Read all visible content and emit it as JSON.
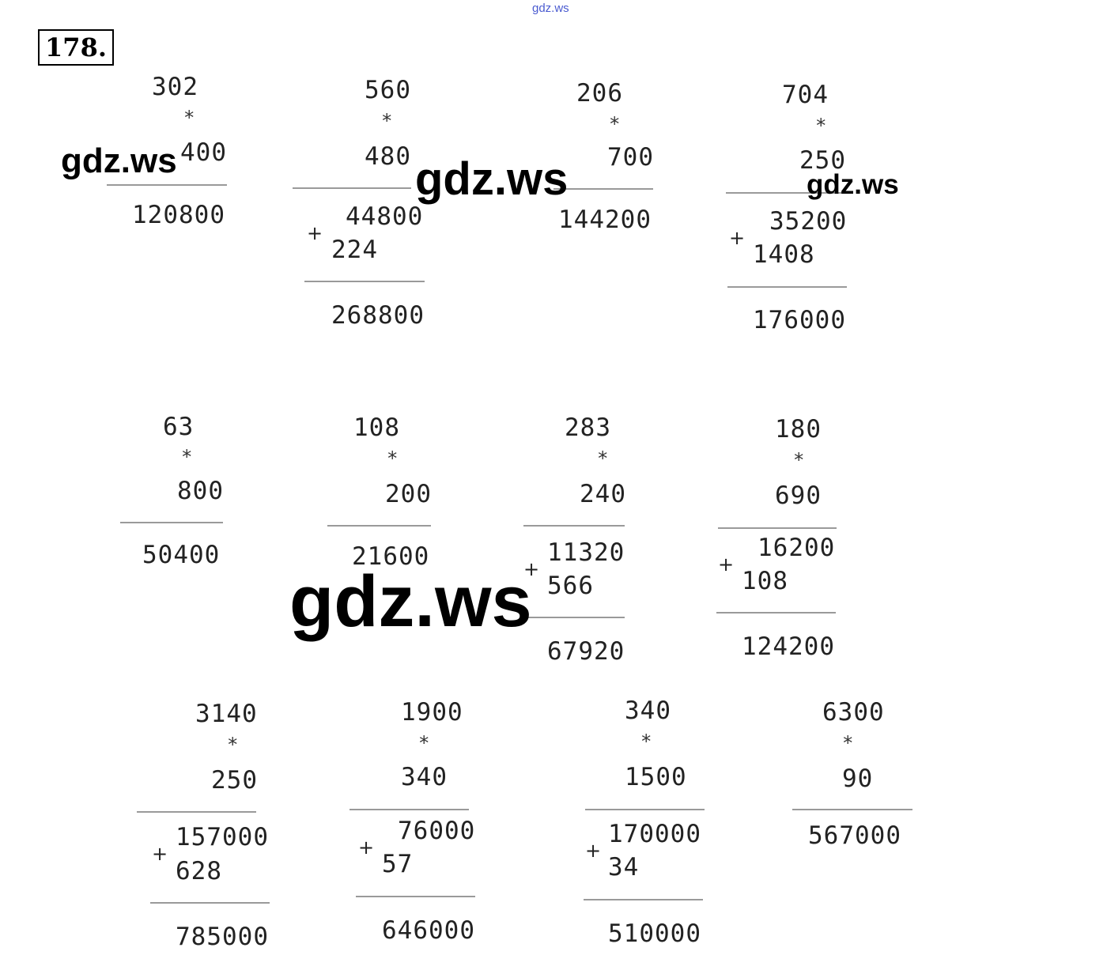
{
  "top_watermark": "gdz.ws",
  "exercise_number": "178.",
  "watermarks": [
    "gdz.ws",
    "gdz.ws",
    "gdz.ws",
    "gdz.ws"
  ],
  "operators": {
    "multiply": "*",
    "plus": "+"
  },
  "problems": [
    {
      "a": "302",
      "b": "400",
      "result": "120800"
    },
    {
      "a": "560",
      "b": "480",
      "partials": [
        "44800",
        "224"
      ],
      "result": "268800"
    },
    {
      "a": "206",
      "b": "700",
      "result": "144200"
    },
    {
      "a": "704",
      "b": "250",
      "partials": [
        "35200",
        "1408"
      ],
      "result": "176000"
    },
    {
      "a": "63",
      "b": "800",
      "result": "50400"
    },
    {
      "a": "108",
      "b": "200",
      "result": "21600"
    },
    {
      "a": "283",
      "b": "240",
      "partials": [
        "11320",
        "566"
      ],
      "result": "67920"
    },
    {
      "a": "180",
      "b": "690",
      "partials": [
        "16200",
        "108"
      ],
      "result": "124200"
    },
    {
      "a": "3140",
      "b": "250",
      "partials": [
        "157000",
        "628"
      ],
      "result": "785000"
    },
    {
      "a": "1900",
      "b": "340",
      "partials": [
        "76000",
        "57"
      ],
      "result": "646000"
    },
    {
      "a": "340",
      "b": "1500",
      "partials": [
        "170000",
        "34"
      ],
      "result": "510000"
    },
    {
      "a": "6300",
      "b": "90",
      "result": "567000"
    }
  ]
}
